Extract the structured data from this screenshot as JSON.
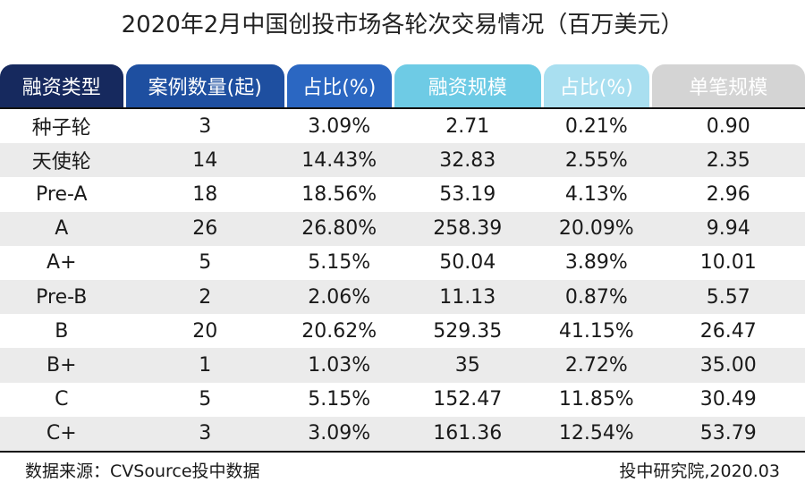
{
  "title": "2020年2月中国创投市场各轮次交易情况（百万美元）",
  "headers": [
    {
      "label": "融资类型",
      "color": "#16295e"
    },
    {
      "label": "案例数量(起)",
      "color": "#1e4fa0"
    },
    {
      "label": "占比(%)",
      "color": "#2b67c2"
    },
    {
      "label": "融资规模",
      "color": "#6ecbe5"
    },
    {
      "label": "占比(%)",
      "color": "#a9dff0"
    },
    {
      "label": "单笔规模",
      "color": "#d4d4d4"
    }
  ],
  "rows": [
    [
      "种子轮",
      "3",
      "3.09%",
      "2.71",
      "0.21%",
      "0.90"
    ],
    [
      "天使轮",
      "14",
      "14.43%",
      "32.83",
      "2.55%",
      "2.35"
    ],
    [
      "Pre-A",
      "18",
      "18.56%",
      "53.19",
      "4.13%",
      "2.96"
    ],
    [
      "A",
      "26",
      "26.80%",
      "258.39",
      "20.09%",
      "9.94"
    ],
    [
      "A+",
      "5",
      "5.15%",
      "50.04",
      "3.89%",
      "10.01"
    ],
    [
      "Pre-B",
      "2",
      "2.06%",
      "11.13",
      "0.87%",
      "5.57"
    ],
    [
      "B",
      "20",
      "20.62%",
      "529.35",
      "41.15%",
      "26.47"
    ],
    [
      "B+",
      "1",
      "1.03%",
      "35",
      "2.72%",
      "35.00"
    ],
    [
      "C",
      "5",
      "5.15%",
      "152.47",
      "11.85%",
      "30.49"
    ],
    [
      "C+",
      "3",
      "3.09%",
      "161.36",
      "12.54%",
      "53.79"
    ]
  ],
  "footer": {
    "source": "数据来源：CVSource投中数据",
    "credit": "投中研究院,2020.03"
  }
}
